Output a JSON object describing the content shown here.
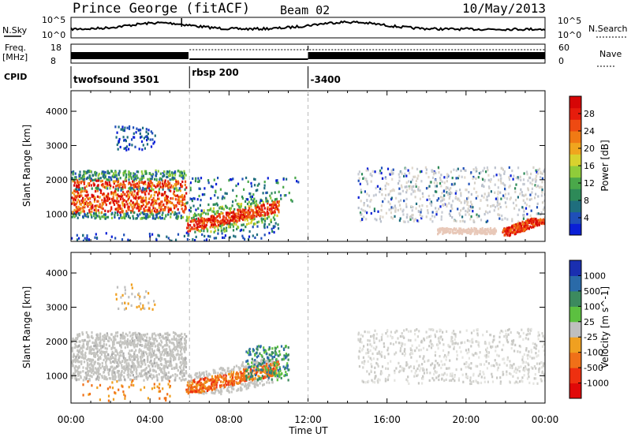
{
  "header": {
    "station": "Prince George (fitACF)",
    "beam": "Beam 02",
    "date": "10/May/2013"
  },
  "top_panels": {
    "nsky_label": "N.Sky",
    "nsky_tick_top": "10^5",
    "nsky_tick_bottom": "10^0",
    "nsearch_label": "N.Search",
    "nsearch_tick_top": "10^5",
    "nsearch_tick_bottom": "10^0",
    "freq_label_1": "Freq.",
    "freq_label_2": "[MHz]",
    "freq_tick_top": "18",
    "freq_tick_bottom": "8",
    "nave_label": "Nave",
    "nave_tick_top": "60",
    "nave_tick_bottom": "0",
    "cpid_label": "CPID",
    "cpid_segments": [
      {
        "start_ut": 0,
        "label": "twofsound 3501"
      },
      {
        "start_ut": 6,
        "label": "rbsp 200"
      },
      {
        "start_ut": 12,
        "label": "-3400"
      }
    ]
  },
  "chart_data": [
    {
      "type": "heatmap",
      "name": "power",
      "ylabel": "Slant Range [km]",
      "xlim": [
        0,
        24
      ],
      "ylim": [
        200,
        4600
      ],
      "yticks": [
        1000,
        2000,
        3000,
        4000
      ],
      "colorbar": {
        "label": "Power [dB]",
        "ticks": [
          "4",
          "8",
          "12",
          "16",
          "20",
          "24",
          "28"
        ],
        "colors": [
          "#0a1fd6",
          "#1f4fb8",
          "#1f6e7d",
          "#2d8a58",
          "#4aa84a",
          "#8fcc3a",
          "#d8d22e",
          "#f0a51e",
          "#f07a14",
          "#ee4a12",
          "#e61c0c",
          "#d60606"
        ]
      },
      "features": [
        {
          "from_ut": 0.0,
          "to_ut": 5.8,
          "range_km": [
            900,
            2300
          ],
          "level": "strong"
        },
        {
          "from_ut": 5.8,
          "to_ut": 10.5,
          "range_km": [
            500,
            1500
          ],
          "level": "strong"
        },
        {
          "from_ut": 2.2,
          "to_ut": 4.3,
          "range_km": [
            2900,
            3600
          ],
          "level": "weak"
        },
        {
          "from_ut": 14.5,
          "to_ut": 24.0,
          "range_km": [
            800,
            2400
          ],
          "level": "weak"
        },
        {
          "from_ut": 21.8,
          "to_ut": 24.0,
          "range_km": [
            400,
            900
          ],
          "level": "strong"
        }
      ]
    },
    {
      "type": "heatmap",
      "name": "velocity",
      "ylabel": "Slant Range [km]",
      "xlabel": "Time UT",
      "xlim": [
        0,
        24
      ],
      "ylim": [
        200,
        4600
      ],
      "xticks": [
        "00:00",
        "04:00",
        "08:00",
        "12:00",
        "16:00",
        "20:00",
        "00:00"
      ],
      "yticks": [
        1000,
        2000,
        3000,
        4000
      ],
      "colorbar": {
        "label": "Velocity [m s^-1]",
        "ticks": [
          "1000",
          "500",
          "100",
          "25",
          "-25",
          "-100",
          "-500",
          "-1000"
        ],
        "colors": [
          "#1a2fb0",
          "#2a6aa8",
          "#3c8a5e",
          "#5cc040",
          "#bfbfbf",
          "#f0a020",
          "#f07018",
          "#ee3010",
          "#e00808"
        ]
      },
      "features": [
        {
          "from_ut": 0.0,
          "to_ut": 5.8,
          "range_km": [
            900,
            2300
          ],
          "velocity": "ground scatter"
        },
        {
          "from_ut": 5.8,
          "to_ut": 10.5,
          "range_km": [
            500,
            1500
          ],
          "velocity": "-100 to -500"
        },
        {
          "from_ut": 9.0,
          "to_ut": 11.0,
          "range_km": [
            900,
            1900
          ],
          "velocity": "100 to 500"
        },
        {
          "from_ut": 14.5,
          "to_ut": 24.0,
          "range_km": [
            800,
            2400
          ],
          "velocity": "ground scatter"
        }
      ]
    }
  ]
}
